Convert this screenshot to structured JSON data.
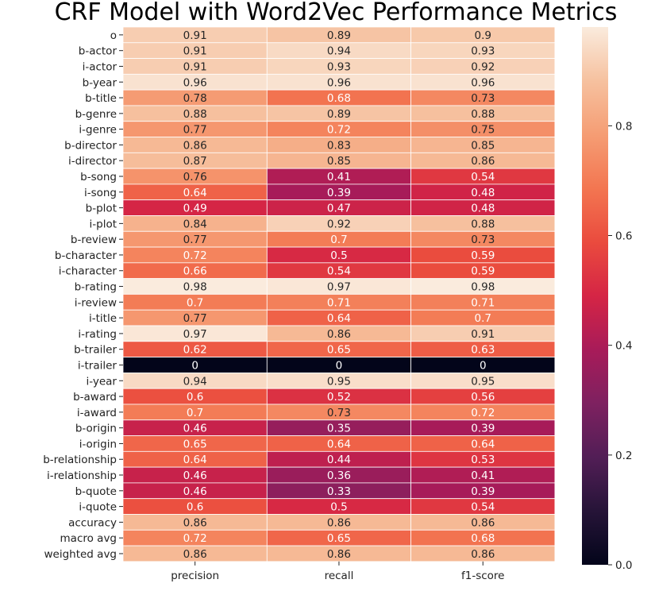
{
  "chart_data": {
    "type": "heatmap",
    "title": "CRF Model with Word2Vec Performance Metrics",
    "columns": [
      "precision",
      "recall",
      "f1-score"
    ],
    "rows": [
      "o",
      "b-actor",
      "i-actor",
      "b-year",
      "b-title",
      "b-genre",
      "i-genre",
      "b-director",
      "i-director",
      "b-song",
      "i-song",
      "b-plot",
      "i-plot",
      "b-review",
      "b-character",
      "i-character",
      "b-rating",
      "i-review",
      "i-title",
      "i-rating",
      "b-trailer",
      "i-trailer",
      "i-year",
      "b-award",
      "i-award",
      "b-origin",
      "i-origin",
      "b-relationship",
      "i-relationship",
      "b-quote",
      "i-quote",
      "accuracy",
      "macro avg",
      "weighted avg"
    ],
    "values": [
      [
        0.91,
        0.89,
        0.9
      ],
      [
        0.91,
        0.94,
        0.93
      ],
      [
        0.91,
        0.93,
        0.92
      ],
      [
        0.96,
        0.96,
        0.96
      ],
      [
        0.78,
        0.68,
        0.73
      ],
      [
        0.88,
        0.89,
        0.88
      ],
      [
        0.77,
        0.72,
        0.75
      ],
      [
        0.86,
        0.83,
        0.85
      ],
      [
        0.87,
        0.85,
        0.86
      ],
      [
        0.76,
        0.41,
        0.54
      ],
      [
        0.64,
        0.39,
        0.48
      ],
      [
        0.49,
        0.47,
        0.48
      ],
      [
        0.84,
        0.92,
        0.88
      ],
      [
        0.77,
        0.7,
        0.73
      ],
      [
        0.72,
        0.5,
        0.59
      ],
      [
        0.66,
        0.54,
        0.59
      ],
      [
        0.98,
        0.97,
        0.98
      ],
      [
        0.7,
        0.71,
        0.71
      ],
      [
        0.77,
        0.64,
        0.7
      ],
      [
        0.97,
        0.86,
        0.91
      ],
      [
        0.62,
        0.65,
        0.63
      ],
      [
        0,
        0,
        0
      ],
      [
        0.94,
        0.95,
        0.95
      ],
      [
        0.6,
        0.52,
        0.56
      ],
      [
        0.7,
        0.73,
        0.72
      ],
      [
        0.46,
        0.35,
        0.39
      ],
      [
        0.65,
        0.64,
        0.64
      ],
      [
        0.64,
        0.44,
        0.53
      ],
      [
        0.46,
        0.36,
        0.41
      ],
      [
        0.46,
        0.33,
        0.39
      ],
      [
        0.6,
        0.5,
        0.54
      ],
      [
        0.86,
        0.86,
        0.86
      ],
      [
        0.72,
        0.65,
        0.68
      ],
      [
        0.86,
        0.86,
        0.86
      ]
    ],
    "colorbar": {
      "range": [
        0,
        0.98
      ],
      "ticks": [
        0.0,
        0.2,
        0.4,
        0.6,
        0.8
      ],
      "tick_labels": [
        "0.0",
        "0.2",
        "0.4",
        "0.6",
        "0.8"
      ],
      "colormap": "rocket",
      "placement": "right"
    },
    "grid_lines": true
  }
}
